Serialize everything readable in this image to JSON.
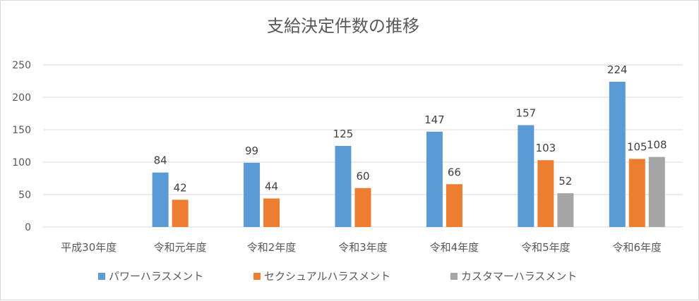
{
  "chart_data": {
    "type": "bar",
    "title": "支給決定件数の推移",
    "categories": [
      "平成30年度",
      "令和元年度",
      "令和2年度",
      "令和3年度",
      "令和4年度",
      "令和5年度",
      "令和6年度"
    ],
    "series": [
      {
        "name": "パワーハラスメント",
        "color": "#5b9bd5",
        "values": [
          null,
          84,
          99,
          125,
          147,
          157,
          224
        ]
      },
      {
        "name": "セクシュアルハラスメント",
        "color": "#ed7d31",
        "values": [
          null,
          42,
          44,
          60,
          66,
          103,
          105
        ]
      },
      {
        "name": "カスタマーハラスメント",
        "color": "#a5a5a5",
        "values": [
          null,
          null,
          null,
          null,
          null,
          52,
          108
        ]
      }
    ],
    "ylim": [
      0,
      250
    ],
    "yticks": [
      0,
      50,
      100,
      150,
      200,
      250
    ],
    "grid": true,
    "legend_position": "bottom"
  }
}
